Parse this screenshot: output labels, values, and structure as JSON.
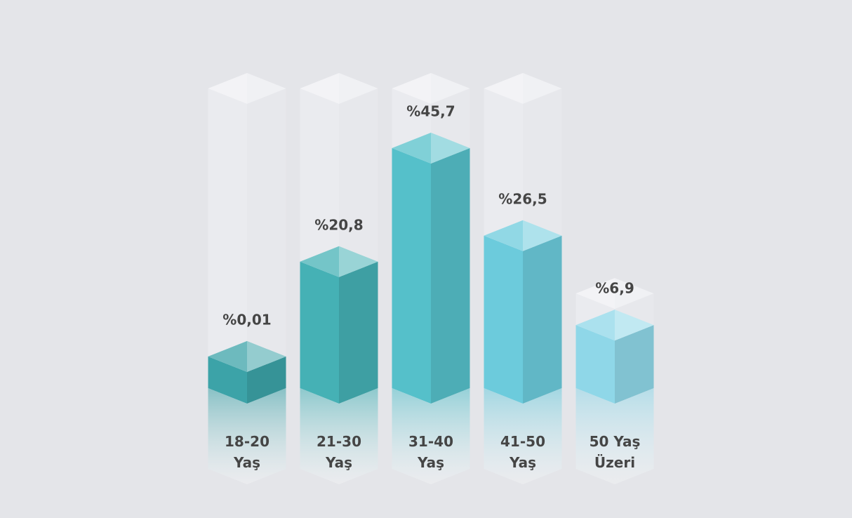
{
  "chart_data": {
    "type": "bar3d",
    "categories": [
      "18-20 Yaş",
      "21-30 Yaş",
      "31-40 Yaş",
      "41-50 Yaş",
      "50 Yaş Üzeri"
    ],
    "values": [
      0.01,
      20.8,
      45.7,
      26.5,
      6.9
    ],
    "value_labels": [
      "%0,01",
      "%20,8",
      "%45,7",
      "%26,5",
      "%6,9"
    ],
    "colors": [
      "#3ca3a8",
      "#45b1b5",
      "#55c0ca",
      "#6ccbdc",
      "#8fd7e8"
    ]
  }
}
